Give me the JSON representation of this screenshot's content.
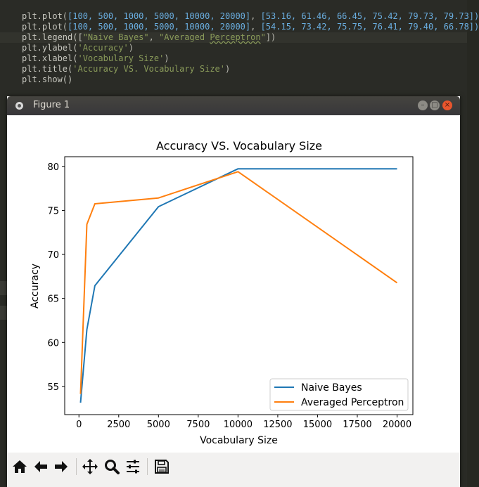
{
  "editor": {
    "lines": [
      {
        "fn": "plt.plot",
        "x": "[100, 500, 1000, 5000, 10000, 20000]",
        "y": "[53.16, 61.46, 66.45, 75.42, 79.73, 79.73])"
      },
      {
        "fn": "plt.plot",
        "x": "[100, 500, 1000, 5000, 10000, 20000]",
        "y": "[54.15, 73.42, 75.75, 76.41, 79.40, 66.78])"
      },
      {
        "pre": "plt.legend([",
        "s1": "\"Naive Bayes\"",
        "mid": ", ",
        "s2a": "\"Averaged ",
        "s2b": "Perceptron",
        "s2c": "\"",
        "post": "])"
      },
      {
        "pre": "plt.ylabel(",
        "s": "'Accuracy'",
        "post": ")"
      },
      {
        "pre": "plt.xlabel(",
        "s": "'Vocabulary Size'",
        "post": ")"
      },
      {
        "pre": "plt.title(",
        "s": "'Accuracy VS. Vocabulary Size'",
        "post": ")"
      },
      {
        "pre": "plt.show()"
      }
    ]
  },
  "window": {
    "title": "Figure 1",
    "buttons": {
      "minimize": "–",
      "maximize": "□",
      "close": "×"
    }
  },
  "toolbar": {
    "icons": [
      "home-icon",
      "back-arrow-icon",
      "forward-arrow-icon",
      "pan-icon",
      "zoom-icon",
      "subplots-icon",
      "save-icon"
    ]
  },
  "colors": {
    "naive_bayes": "#1f77b4",
    "averaged_perceptron": "#ff7f0e"
  },
  "chart_data": {
    "type": "line",
    "title": "Accuracy VS. Vocabulary Size",
    "xlabel": "Vocabulary Size",
    "ylabel": "Accuracy",
    "x": [
      100,
      500,
      1000,
      5000,
      10000,
      20000
    ],
    "series": [
      {
        "name": "Naive Bayes",
        "values": [
          53.16,
          61.46,
          66.45,
          75.42,
          79.73,
          79.73
        ]
      },
      {
        "name": "Averaged Perceptron",
        "values": [
          54.15,
          73.42,
          75.75,
          76.41,
          79.4,
          66.78
        ]
      }
    ],
    "xlim": [
      -895,
      20995
    ],
    "ylim": [
      51.8,
      81.1
    ],
    "xticks": [
      0,
      2500,
      5000,
      7500,
      10000,
      12500,
      15000,
      17500,
      20000
    ],
    "xtick_labels": [
      "0",
      "2500",
      "5000",
      "7500",
      "10000",
      "12500",
      "15000",
      "17500",
      "20000"
    ],
    "yticks": [
      55,
      60,
      65,
      70,
      75,
      80
    ],
    "ytick_labels": [
      "55",
      "60",
      "65",
      "70",
      "75",
      "80"
    ],
    "legend": "lower-right",
    "grid": false
  }
}
